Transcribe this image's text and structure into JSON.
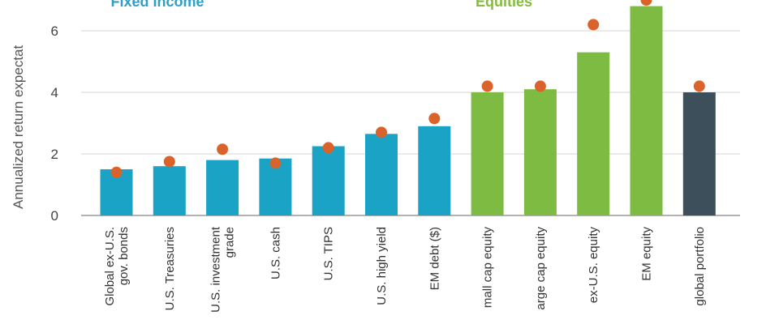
{
  "chart_data": {
    "type": "bar",
    "ylabel": "Annualized return expectat",
    "yticks": [
      0,
      2,
      4,
      6
    ],
    "ylim": [
      0,
      7.1
    ],
    "grid": true,
    "groups": [
      {
        "label": "Fixed Income",
        "color": "#2f9fc6",
        "from": 0,
        "to": 6
      },
      {
        "label": "Equities",
        "color": "#83bd3b",
        "from": 7,
        "to": 10
      }
    ],
    "categories": [
      [
        "Global ex-U.S.",
        "gov. bonds"
      ],
      [
        "U.S. Treasuries"
      ],
      [
        "U.S. investment",
        "grade"
      ],
      [
        "U.S. cash"
      ],
      [
        "U.S. TIPS"
      ],
      [
        "U.S. high yield"
      ],
      [
        "EM debt ($)"
      ],
      [
        "mall cap equity"
      ],
      [
        "arge cap equity"
      ],
      [
        "ex-U.S. equity"
      ],
      [
        "EM  equity"
      ],
      [
        "global portfolio"
      ]
    ],
    "series": [
      {
        "values": [
          1.5,
          1.6,
          1.8,
          1.85,
          2.25,
          2.65,
          2.9,
          4.0,
          4.1,
          5.3,
          6.8,
          4.0
        ]
      },
      {
        "values": [
          1.4,
          1.75,
          2.15,
          1.7,
          2.2,
          2.7,
          3.15,
          4.2,
          4.2,
          6.2,
          7.0,
          4.2
        ]
      }
    ],
    "bar_colors": [
      "#1ba3c6",
      "#1ba3c6",
      "#1ba3c6",
      "#1ba3c6",
      "#1ba3c6",
      "#1ba3c6",
      "#1ba3c6",
      "#7dbb42",
      "#7dbb42",
      "#7dbb42",
      "#7dbb42",
      "#3d4f5a"
    ],
    "dot_color": "#d9632b"
  }
}
